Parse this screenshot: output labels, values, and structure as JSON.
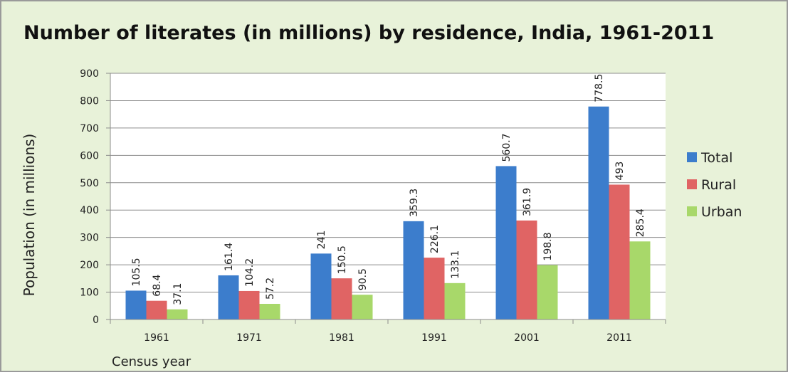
{
  "chart_data": {
    "type": "bar",
    "title": "Number of literates (in millions) by residence, India, 1961-2011",
    "x_label": "Census year",
    "y_label": "Population (in millions)",
    "categories": [
      "1961",
      "1971",
      "1981",
      "1991",
      "2001",
      "2011"
    ],
    "series": [
      {
        "name": "Total",
        "color": "#3c7dcc",
        "values": [
          105.5,
          161.4,
          241,
          359.3,
          560.7,
          778.5
        ]
      },
      {
        "name": "Rural",
        "color": "#e06464",
        "values": [
          68.4,
          104.2,
          150.5,
          226.1,
          361.9,
          493
        ]
      },
      {
        "name": "Urban",
        "color": "#a8d86a",
        "values": [
          37.1,
          57.2,
          90.5,
          133.1,
          198.8,
          285.4
        ]
      }
    ],
    "ylim": [
      0,
      900
    ],
    "yticks": [
      0,
      100,
      200,
      300,
      400,
      500,
      600,
      700,
      800,
      900
    ],
    "grid": true,
    "legend": "right"
  }
}
